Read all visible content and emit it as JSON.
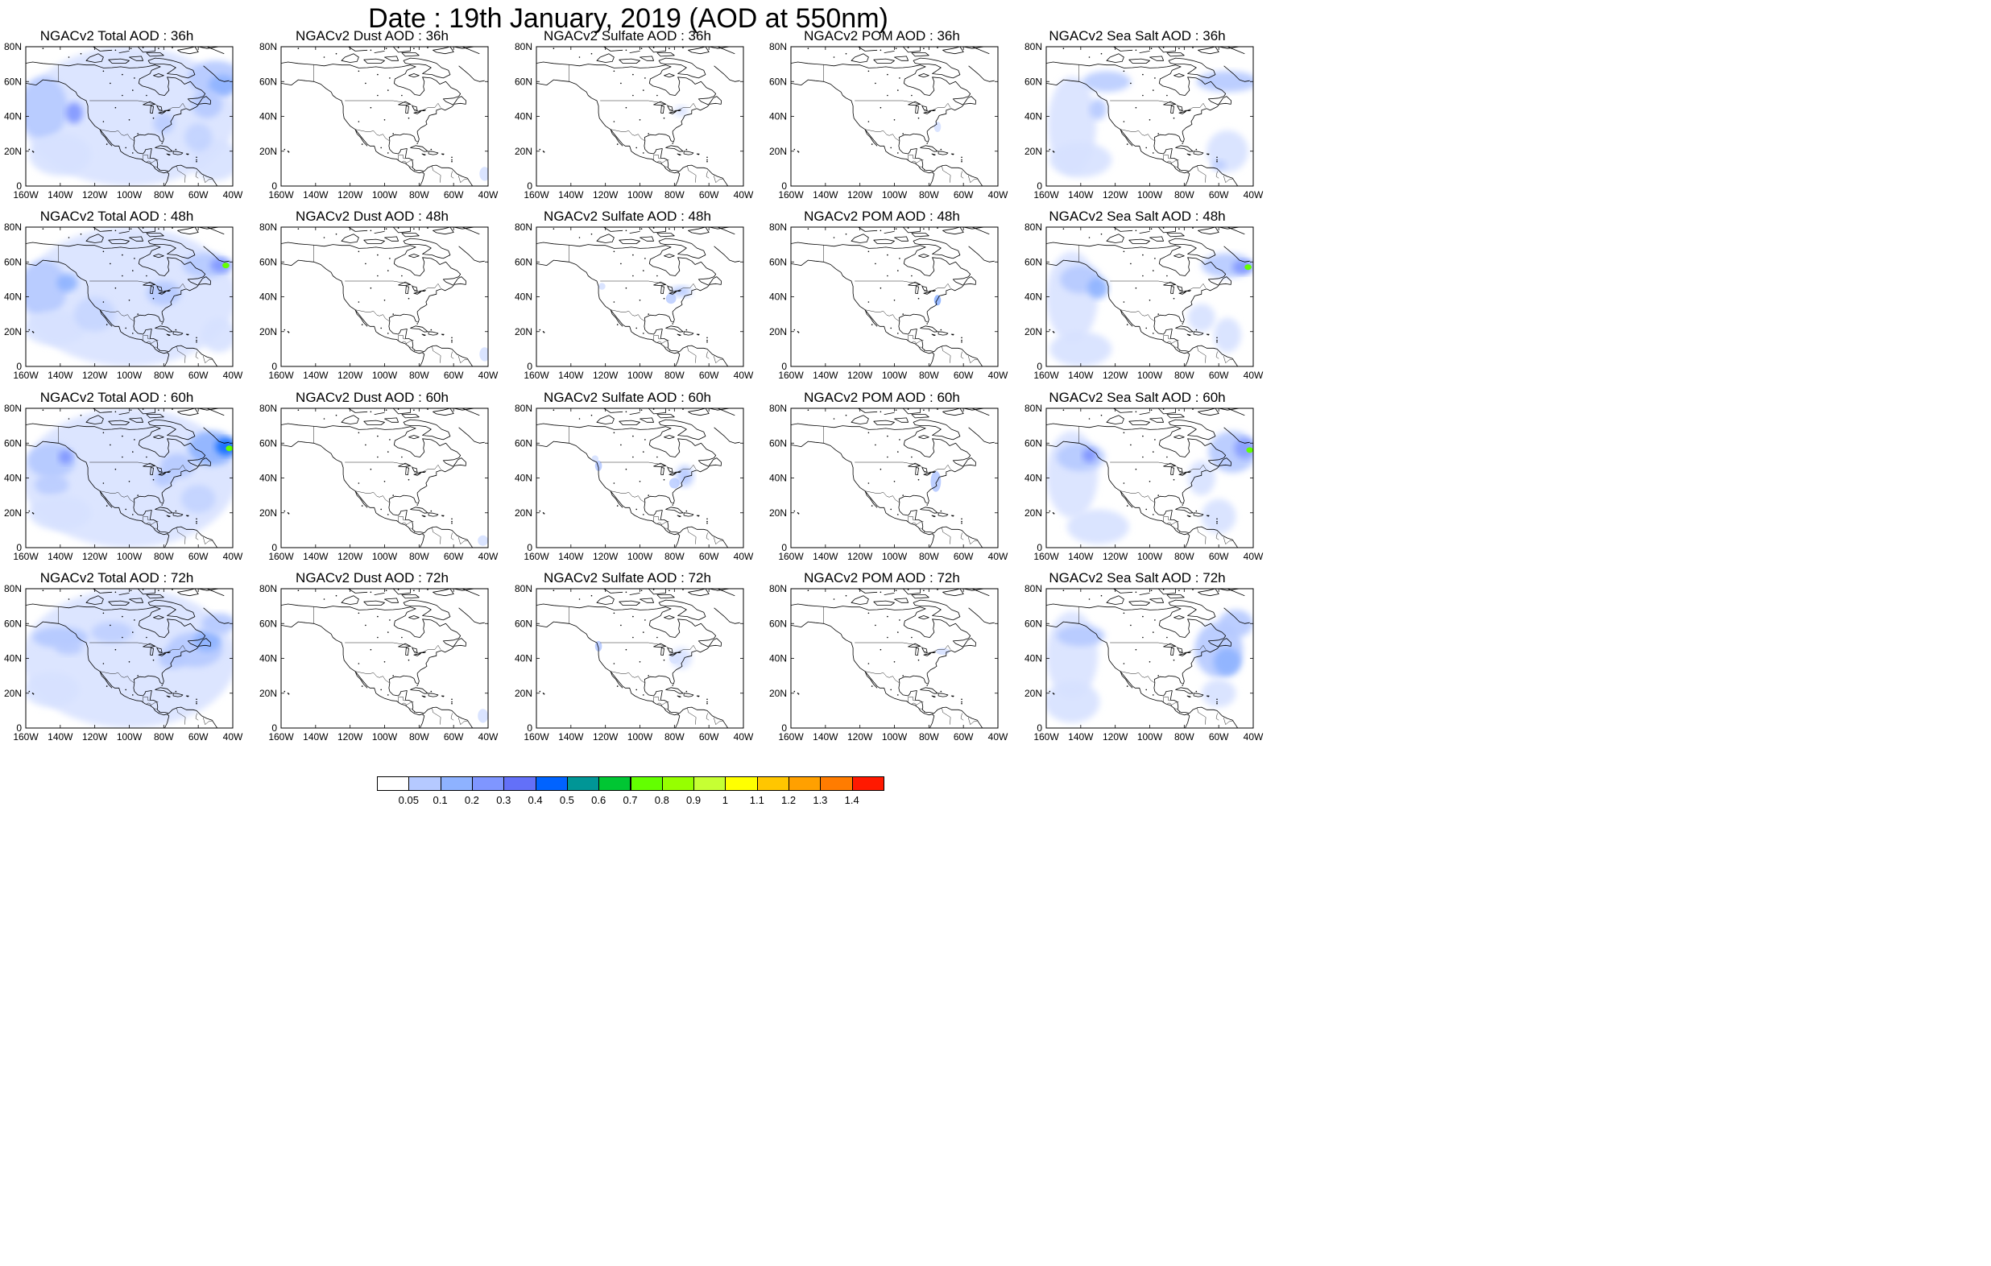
{
  "title": "Date : 19th January, 2019 (AOD at 550nm)",
  "rows": [
    {
      "panels": [
        {
          "title": "NGACv2 Total AOD : 36h",
          "species": "total",
          "lead": 36
        },
        {
          "title": "NGACv2 Dust AOD : 36h",
          "species": "dust",
          "lead": 36
        },
        {
          "title": "NGACv2 Sulfate AOD : 36h",
          "species": "sulfate",
          "lead": 36
        },
        {
          "title": "NGACv2 POM AOD : 36h",
          "species": "pom",
          "lead": 36
        },
        {
          "title": "NGACv2 Sea Salt AOD : 36h",
          "species": "seasalt",
          "lead": 36
        }
      ]
    },
    {
      "panels": [
        {
          "title": "NGACv2 Total AOD : 48h",
          "species": "total",
          "lead": 48
        },
        {
          "title": "NGACv2 Dust AOD : 48h",
          "species": "dust",
          "lead": 48
        },
        {
          "title": "NGACv2 Sulfate AOD : 48h",
          "species": "sulfate",
          "lead": 48
        },
        {
          "title": "NGACv2 POM AOD : 48h",
          "species": "pom",
          "lead": 48
        },
        {
          "title": "NGACv2 Sea Salt AOD : 48h",
          "species": "seasalt",
          "lead": 48
        }
      ]
    },
    {
      "panels": [
        {
          "title": "NGACv2 Total AOD : 60h",
          "species": "total",
          "lead": 60
        },
        {
          "title": "NGACv2 Dust AOD : 60h",
          "species": "dust",
          "lead": 60
        },
        {
          "title": "NGACv2 Sulfate AOD : 60h",
          "species": "sulfate",
          "lead": 60
        },
        {
          "title": "NGACv2 POM AOD : 60h",
          "species": "pom",
          "lead": 60
        },
        {
          "title": "NGACv2 Sea Salt AOD : 60h",
          "species": "seasalt",
          "lead": 60
        }
      ]
    },
    {
      "panels": [
        {
          "title": "NGACv2 Total AOD : 72h",
          "species": "total",
          "lead": 72
        },
        {
          "title": "NGACv2 Dust AOD : 72h",
          "species": "dust",
          "lead": 72
        },
        {
          "title": "NGACv2 Sulfate AOD : 72h",
          "species": "sulfate",
          "lead": 72
        },
        {
          "title": "NGACv2 POM AOD : 72h",
          "species": "pom",
          "lead": 72
        },
        {
          "title": "NGACv2 Sea Salt  AOD : 72h",
          "species": "seasalt",
          "lead": 72
        }
      ]
    }
  ],
  "axes": {
    "x_ticks": [
      "160W",
      "140W",
      "120W",
      "100W",
      "80W",
      "60W",
      "40W"
    ],
    "y_ticks": [
      "0",
      "20N",
      "40N",
      "60N",
      "80N"
    ],
    "lon_range": [
      -160,
      -40
    ],
    "lat_range": [
      0,
      80
    ]
  },
  "colorbar": {
    "labels": [
      "0.05",
      "0.1",
      "0.2",
      "0.3",
      "0.4",
      "0.5",
      "0.6",
      "0.7",
      "0.8",
      "0.9",
      "1",
      "1.1",
      "1.2",
      "1.3",
      "1.4"
    ],
    "colors": [
      "#ffffff",
      "#d6e1ff",
      "#b5c9ff",
      "#8eb2ff",
      "#7f96ff",
      "#6370f8",
      "#0063ff",
      "#009696",
      "#00c633",
      "#63ff00",
      "#96ff00",
      "#c6ff33",
      "#ffff00",
      "#ffc600",
      "#ffa000",
      "#ff7c00",
      "#ff1900"
    ]
  }
}
